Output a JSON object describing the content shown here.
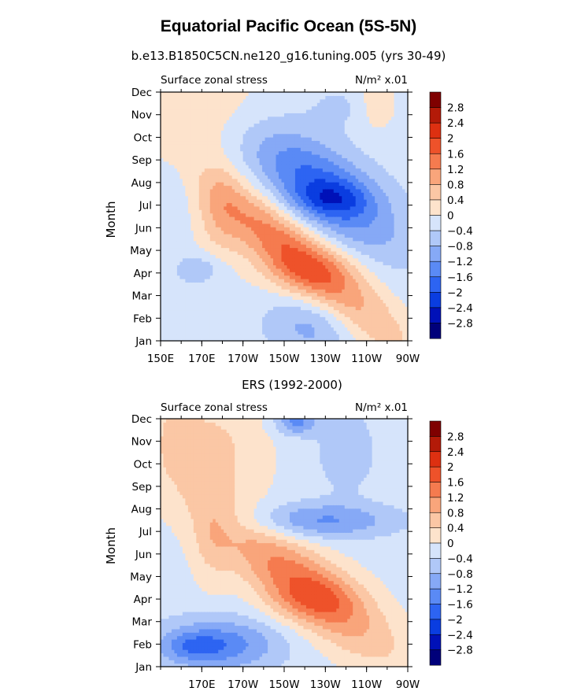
{
  "figure": {
    "title": "Equatorial Pacific Ocean (5S-5N)",
    "subtitle": "b.e13.B1850C5CN.ne120_g16.tuning.005 (yrs 30-49)"
  },
  "colorbar_colors": [
    "#00007a",
    "#0011b8",
    "#0a3de0",
    "#2d64f2",
    "#5a8af5",
    "#86a9f6",
    "#b0c8f8",
    "#d6e4fb",
    "#fde3cc",
    "#fbc7a5",
    "#f9a57b",
    "#f57b4f",
    "#ee522a",
    "#dd3011",
    "#b31a08",
    "#7f0000"
  ],
  "chart_data": [
    {
      "type": "heatmap",
      "panel_title": "",
      "left_label": "Surface zonal stress",
      "units": "N/m² x.01",
      "ylabel": "Month",
      "x_tick_labels": [
        "150E",
        "170E",
        "170W",
        "150W",
        "130W",
        "110W",
        "90W"
      ],
      "x_tick_lons": [
        150,
        170,
        190,
        210,
        230,
        250,
        270
      ],
      "y_tick_labels": [
        "Jan",
        "Feb",
        "Mar",
        "Apr",
        "May",
        "Jun",
        "Jul",
        "Aug",
        "Sep",
        "Oct",
        "Nov",
        "Dec"
      ],
      "xlim_lon": [
        150,
        270
      ],
      "colorbar_levels": [
        "2.8",
        "2.4",
        "2",
        "1.6",
        "1.2",
        "0.8",
        "0.4",
        "0",
        "-0.4",
        "-0.8",
        "-1.2",
        "-1.6",
        "-2",
        "-2.4",
        "-2.8"
      ],
      "background": -0.2,
      "features": [
        {
          "lon": 165,
          "month": 7.5,
          "rx": 26,
          "ry": 1.9,
          "v": -0.4
        },
        {
          "lon": 170,
          "month": 3.2,
          "rx": 12,
          "ry": 0.7,
          "v": -0.6
        },
        {
          "lon": 170,
          "month": 10.2,
          "rx": 35,
          "ry": 2.6,
          "v": 0.6
        },
        {
          "lon": 255,
          "month": 10.5,
          "rx": 10,
          "ry": 1.2,
          "v": 0.6
        },
        {
          "lon": 240,
          "month": 10.4,
          "rx": 20,
          "ry": 1.0,
          "v": -0.3
        },
        {
          "lon": 228,
          "month": 6.8,
          "rx": 36,
          "ry": 2.0,
          "v": -1.6,
          "tilt": -0.05
        },
        {
          "lon": 233,
          "month": 6.3,
          "rx": 18,
          "ry": 0.8,
          "v": -0.8
        },
        {
          "lon": 218,
          "month": 3.6,
          "rx": 48,
          "ry": 1.7,
          "v": 1.8,
          "tilt": -0.07
        },
        {
          "lon": 222,
          "month": 3.1,
          "rx": 25,
          "ry": 1.0,
          "v": 0.5
        },
        {
          "lon": 225,
          "month": 0.8,
          "rx": 22,
          "ry": 1.5,
          "v": -0.8
        },
        {
          "lon": 178,
          "month": 5.5,
          "rx": 12,
          "ry": 2.5,
          "v": 0.6
        }
      ]
    },
    {
      "type": "heatmap",
      "panel_title": "ERS (1992-2000)",
      "left_label": "Surface zonal stress",
      "units": "N/m² x.01",
      "ylabel": "Month",
      "x_tick_labels": [
        "170E",
        "170W",
        "150W",
        "130W",
        "110W",
        "90W"
      ],
      "x_tick_lons": [
        170,
        190,
        210,
        230,
        250,
        270
      ],
      "y_tick_labels": [
        "Jan",
        "Feb",
        "Mar",
        "Apr",
        "May",
        "Jun",
        "Jul",
        "Aug",
        "Sep",
        "Oct",
        "Nov",
        "Dec"
      ],
      "xlim_lon": [
        150,
        270
      ],
      "colorbar_levels": [
        "2.8",
        "2.4",
        "2",
        "1.6",
        "1.2",
        "0.8",
        "0.4",
        "0",
        "-0.4",
        "-0.8",
        "-1.2",
        "-1.6",
        "-2",
        "-2.4",
        "-2.8"
      ],
      "background": -0.15,
      "features": [
        {
          "lon": 172,
          "month": 9.6,
          "rx": 28,
          "ry": 2.5,
          "v": 0.7
        },
        {
          "lon": 158,
          "month": 10.5,
          "rx": 8,
          "ry": 1.6,
          "v": 0.4
        },
        {
          "lon": 240,
          "month": 9.6,
          "rx": 14,
          "ry": 1.8,
          "v": -0.6
        },
        {
          "lon": 216,
          "month": 10.9,
          "rx": 10,
          "ry": 0.6,
          "v": -1.2
        },
        {
          "lon": 228,
          "month": 6.5,
          "rx": 36,
          "ry": 0.8,
          "v": -1.1
        },
        {
          "lon": 220,
          "month": 3.6,
          "rx": 42,
          "ry": 1.8,
          "v": 1.6,
          "tilt": -0.06
        },
        {
          "lon": 224,
          "month": 3.0,
          "rx": 22,
          "ry": 1.0,
          "v": 0.6
        },
        {
          "lon": 178,
          "month": 1.0,
          "rx": 30,
          "ry": 1.2,
          "v": -1.3
        },
        {
          "lon": 166,
          "month": 0.9,
          "rx": 14,
          "ry": 0.6,
          "v": -0.6
        },
        {
          "lon": 175,
          "month": 5.6,
          "rx": 10,
          "ry": 2.2,
          "v": 0.5
        }
      ]
    }
  ]
}
